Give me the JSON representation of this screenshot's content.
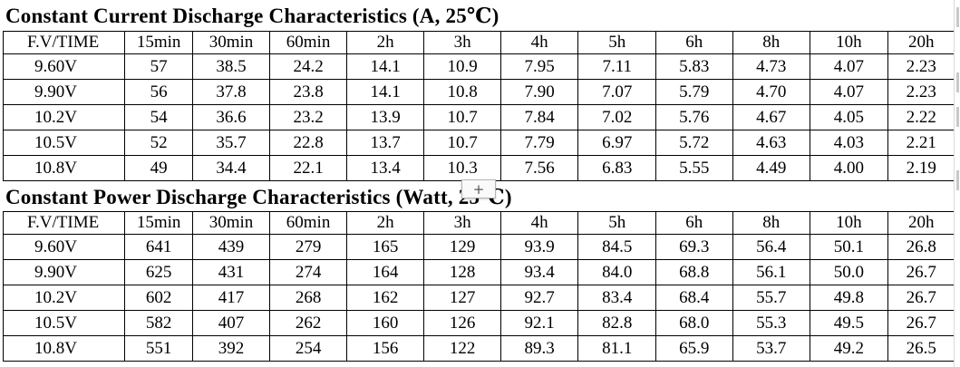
{
  "current_table": {
    "title": "Constant Current Discharge Characteristics (A, 25℃)",
    "header": [
      "F.V/TIME",
      "15min",
      "30min",
      "60min",
      "2h",
      "3h",
      "4h",
      "5h",
      "6h",
      "8h",
      "10h",
      "20h"
    ],
    "rows": [
      [
        "9.60V",
        "57",
        "38.5",
        "24.2",
        "14.1",
        "10.9",
        "7.95",
        "7.11",
        "5.83",
        "4.73",
        "4.07",
        "2.23"
      ],
      [
        "9.90V",
        "56",
        "37.8",
        "23.8",
        "14.1",
        "10.8",
        "7.90",
        "7.07",
        "5.79",
        "4.70",
        "4.07",
        "2.23"
      ],
      [
        "10.2V",
        "54",
        "36.6",
        "23.2",
        "13.9",
        "10.7",
        "7.84",
        "7.02",
        "5.76",
        "4.67",
        "4.05",
        "2.22"
      ],
      [
        "10.5V",
        "52",
        "35.7",
        "22.8",
        "13.7",
        "10.7",
        "7.79",
        "6.97",
        "5.72",
        "4.63",
        "4.03",
        "2.21"
      ],
      [
        "10.8V",
        "49",
        "34.4",
        "22.1",
        "13.4",
        "10.3",
        "7.56",
        "6.83",
        "5.55",
        "4.49",
        "4.00",
        "2.19"
      ]
    ]
  },
  "power_table": {
    "title": "Constant Power Discharge Characteristics (Watt, 25℃)",
    "header": [
      "F.V/TIME",
      "15min",
      "30min",
      "60min",
      "2h",
      "3h",
      "4h",
      "5h",
      "6h",
      "8h",
      "10h",
      "20h"
    ],
    "rows": [
      [
        "9.60V",
        "641",
        "439",
        "279",
        "165",
        "129",
        "93.9",
        "84.5",
        "69.3",
        "56.4",
        "50.1",
        "26.8"
      ],
      [
        "9.90V",
        "625",
        "431",
        "274",
        "164",
        "128",
        "93.4",
        "84.0",
        "68.8",
        "56.1",
        "50.0",
        "26.7"
      ],
      [
        "10.2V",
        "602",
        "417",
        "268",
        "162",
        "127",
        "92.7",
        "83.4",
        "68.4",
        "55.7",
        "49.8",
        "26.7"
      ],
      [
        "10.5V",
        "582",
        "407",
        "262",
        "160",
        "126",
        "92.1",
        "82.8",
        "68.0",
        "55.3",
        "49.5",
        "26.7"
      ],
      [
        "10.8V",
        "551",
        "392",
        "254",
        "156",
        "122",
        "89.3",
        "81.1",
        "65.9",
        "53.7",
        "49.2",
        "26.5"
      ]
    ]
  },
  "overlay": {
    "add_handle_icon": "plus-icon",
    "add_handle_glyph": "+"
  }
}
